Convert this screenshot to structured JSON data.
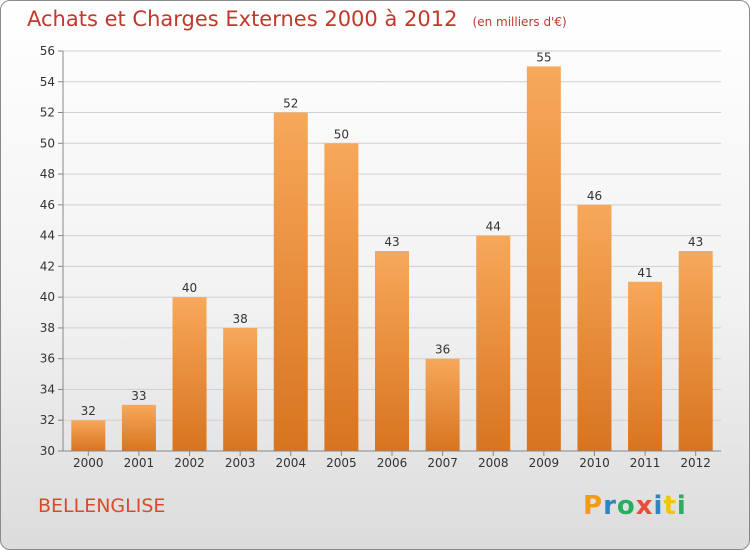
{
  "chart_data": {
    "type": "bar",
    "title": "Achats et Charges Externes 2000 à 2012",
    "subtitle": "(en milliers d'€)",
    "categories": [
      "2000",
      "2001",
      "2002",
      "2003",
      "2004",
      "2005",
      "2006",
      "2007",
      "2008",
      "2009",
      "2010",
      "2011",
      "2012"
    ],
    "values": [
      32,
      33,
      40,
      38,
      52,
      50,
      43,
      36,
      44,
      55,
      46,
      41,
      43
    ],
    "ylim": [
      30,
      56
    ],
    "yticks": [
      30,
      32,
      34,
      36,
      38,
      40,
      42,
      44,
      46,
      48,
      50,
      52,
      54,
      56
    ],
    "grid": true,
    "bar_color_top": "#f7a85a",
    "bar_color_bottom": "#d8741f"
  },
  "location_label": "BELLENGLISE",
  "logo": {
    "letters": [
      "P",
      "r",
      "o",
      "x",
      "i",
      "t",
      "i"
    ],
    "colors": [
      "#f39c12",
      "#2e86c1",
      "#27ae60",
      "#e74c3c",
      "#2e86c1",
      "#f1c40f",
      "#27ae60"
    ]
  }
}
